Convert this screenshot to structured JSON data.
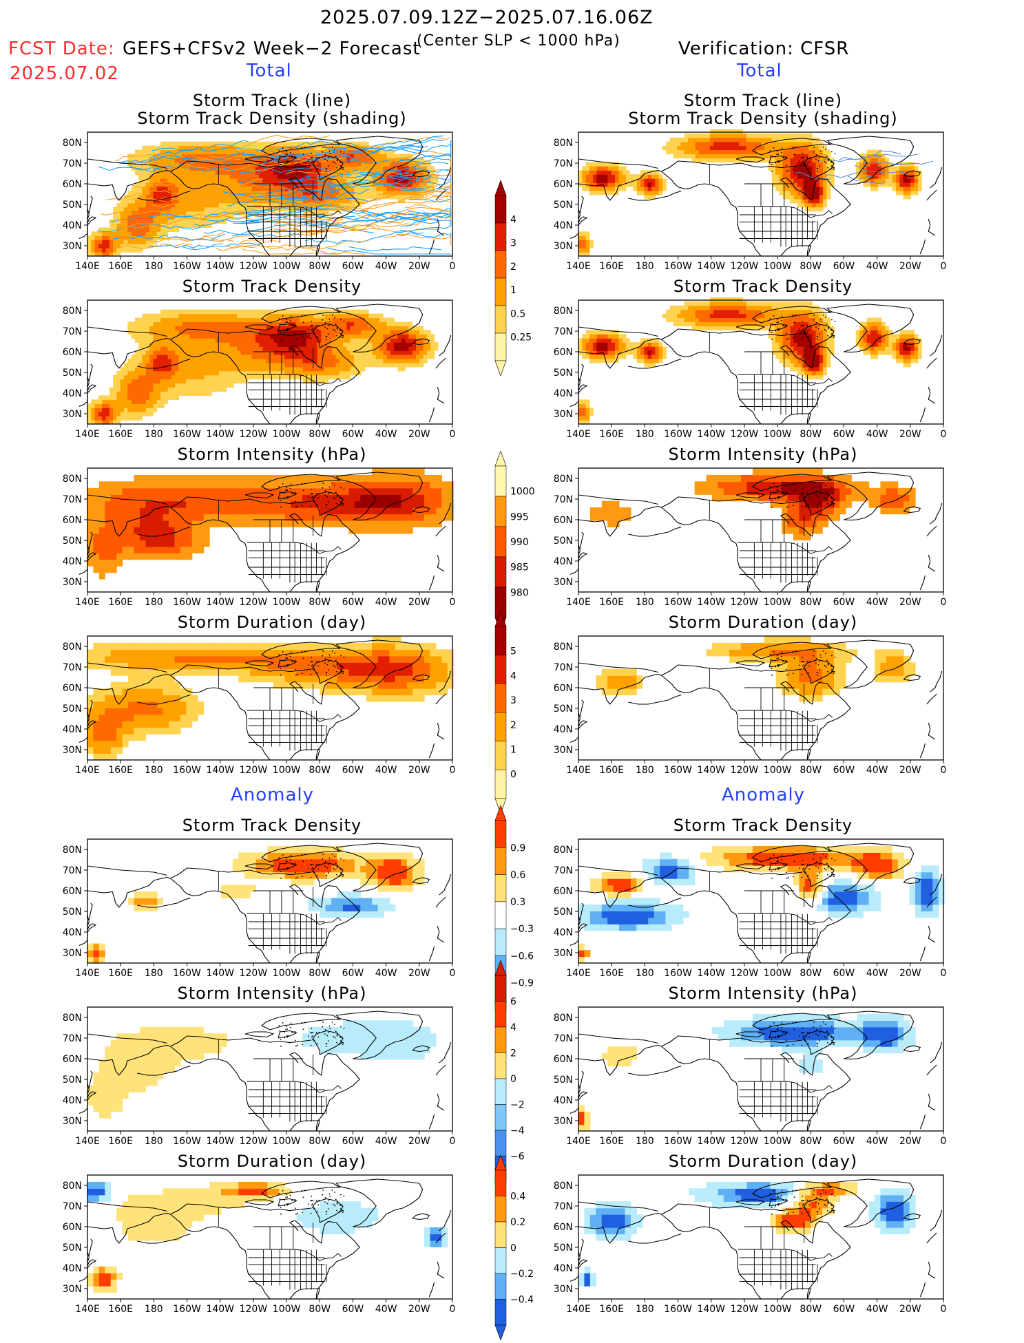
{
  "header": {
    "period": "2025.07.09.12Z−2025.07.16.06Z",
    "fcst_date_label": "FCST Date:",
    "fcst_date_value": "2025.07.02",
    "forecast_title": "GEFS+CFSv2 Week−2 Forecast",
    "criterion": "(Center SLP < 1000 hPa)",
    "verification": "Verification: CFSR"
  },
  "sections": {
    "total": "Total",
    "anomaly": "Anomaly"
  },
  "panel_titles": {
    "track_line": "Storm Track (line)",
    "track_shading": "Storm Track Density (shading)",
    "density": "Storm Track Density",
    "intensity": "Storm Intensity (hPa)",
    "duration": "Storm Duration (day)"
  },
  "axes": {
    "lat_labels": [
      "80N",
      "70N",
      "60N",
      "50N",
      "40N",
      "30N"
    ],
    "lon_labels": [
      "140E",
      "160E",
      "180",
      "160W",
      "140W",
      "120W",
      "100W",
      "80W",
      "60W",
      "40W",
      "20W",
      "0"
    ]
  },
  "colorbars": {
    "total_density": {
      "labels": [
        "4",
        "3",
        "2",
        "1",
        "0.5",
        "0.25"
      ],
      "colors": [
        "#a50000",
        "#e21f00",
        "#ff6a00",
        "#ffa200",
        "#ffd34f",
        "#fff3a5"
      ]
    },
    "total_intensity": {
      "labels": [
        "1000",
        "995",
        "990",
        "985",
        "980"
      ],
      "colors": [
        "#fff6b0",
        "#ff9a10",
        "#ff5a00",
        "#d81c00",
        "#9a0000"
      ]
    },
    "total_duration": {
      "labels": [
        "5",
        "4",
        "3",
        "2",
        "1",
        "0"
      ],
      "colors": [
        "#a50000",
        "#e21f00",
        "#ff6a00",
        "#ffa200",
        "#ffd34f",
        "#fff3a5"
      ]
    },
    "anom_density": {
      "labels": [
        "0.9",
        "0.6",
        "0.3",
        "−0.3",
        "−0.6",
        "−0.9"
      ],
      "colors": [
        "#ff3d00",
        "#ff9a10",
        "#ffe37a",
        "#ffffff",
        "#b8ecfa",
        "#5fb0f5",
        "#2060e0"
      ]
    },
    "anom_intensity": {
      "labels": [
        "6",
        "4",
        "2",
        "0",
        "−2",
        "−4",
        "−6"
      ],
      "colors": [
        "#d81c00",
        "#ff3d00",
        "#ff9a10",
        "#ffe37a",
        "#b8ecfa",
        "#7ec7f8",
        "#4a90ee",
        "#2060e0"
      ]
    },
    "anom_duration": {
      "labels": [
        "0.4",
        "0.2",
        "0",
        "−0.2",
        "−0.4"
      ],
      "colors": [
        "#ff3d00",
        "#ff9a10",
        "#ffe37a",
        "#b8ecfa",
        "#5fb0f5",
        "#2060e0"
      ]
    }
  },
  "palette": {
    "track_orange": "#ff9f1a",
    "track_blue": "#1aa0ff",
    "coast": "#000000"
  }
}
